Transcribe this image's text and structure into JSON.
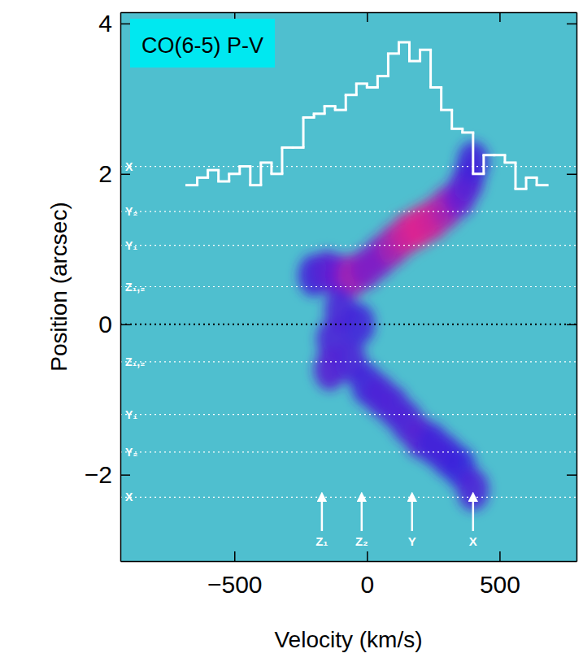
{
  "chart_data": {
    "type": "position-velocity",
    "title": "CO(6-5) P-V",
    "x_label": "Velocity (km/s)",
    "y_label": "Position (arcsec)",
    "xlim": [
      -930,
      790
    ],
    "ylim": [
      -3.15,
      4.15
    ],
    "xticks": [
      {
        "value": -500,
        "label": "−500"
      },
      0,
      500
    ],
    "yticks": [
      {
        "value": -2,
        "label": "−2"
      },
      0,
      2,
      4
    ],
    "emission": {
      "velocity": [
        -200,
        -150,
        -100,
        -50,
        0,
        50,
        100,
        150,
        200,
        250,
        300,
        350,
        380,
        400,
        -100,
        -130,
        -140,
        -60,
        -30,
        0,
        50,
        100,
        150,
        200,
        250,
        300,
        350,
        400
      ],
      "position": [
        0.65,
        0.7,
        0.65,
        0.65,
        0.75,
        0.9,
        1.05,
        1.2,
        1.3,
        1.4,
        1.55,
        1.7,
        1.9,
        2.15,
        0.2,
        -0.2,
        -0.6,
        -0.5,
        0.0,
        -0.8,
        -0.95,
        -1.1,
        -1.3,
        -1.5,
        -1.6,
        -1.75,
        -1.9,
        -2.2
      ],
      "intensity": [
        0.5,
        0.6,
        0.7,
        0.85,
        0.75,
        0.75,
        0.85,
        0.95,
        1.0,
        0.95,
        0.85,
        0.7,
        0.6,
        0.5,
        0.55,
        0.55,
        0.6,
        0.55,
        0.5,
        0.5,
        0.55,
        0.55,
        0.55,
        0.6,
        0.5,
        0.5,
        0.45,
        0.55
      ]
    },
    "spectrum": {
      "color": "#ffffff",
      "bins": [
        -680,
        -640,
        -600,
        -560,
        -520,
        -480,
        -440,
        -400,
        -360,
        -320,
        -280,
        -240,
        -200,
        -160,
        -120,
        -80,
        -40,
        0,
        40,
        80,
        120,
        160,
        200,
        240,
        280,
        320,
        360,
        400,
        440,
        480,
        520,
        560,
        600,
        640,
        680
      ],
      "values": [
        1.85,
        1.95,
        2.05,
        1.9,
        2.0,
        2.1,
        1.85,
        2.15,
        2.0,
        2.35,
        2.35,
        2.75,
        2.8,
        2.9,
        2.85,
        3.05,
        3.2,
        3.15,
        3.3,
        3.6,
        3.75,
        3.5,
        3.65,
        3.15,
        2.85,
        2.6,
        2.55,
        2.0,
        2.25,
        2.25,
        2.15,
        1.8,
        1.95,
        1.85
      ]
    },
    "reference_lines": [
      {
        "position": 2.1,
        "label": "X"
      },
      {
        "position": 1.5,
        "label": "Y₂"
      },
      {
        "position": 1.05,
        "label": "Y₁"
      },
      {
        "position": 0.5,
        "label": "Z₁,₂"
      },
      {
        "position": 0
      },
      {
        "position": -0.5,
        "label": "Z₁,₂"
      },
      {
        "position": -1.2,
        "label": "Y₁"
      },
      {
        "position": -1.7,
        "label": "Y₂"
      },
      {
        "position": -2.3,
        "label": "X"
      }
    ],
    "arrows": [
      {
        "velocity": -170,
        "from": -2.75,
        "to": -2.25,
        "label": "Z₁"
      },
      {
        "velocity": -20,
        "from": -2.75,
        "to": -2.25,
        "label": "Z₂"
      },
      {
        "velocity": 170,
        "from": -2.75,
        "to": -2.25,
        "label": "Y"
      },
      {
        "velocity": 400,
        "from": -2.75,
        "to": -2.25,
        "label": "X"
      }
    ]
  }
}
